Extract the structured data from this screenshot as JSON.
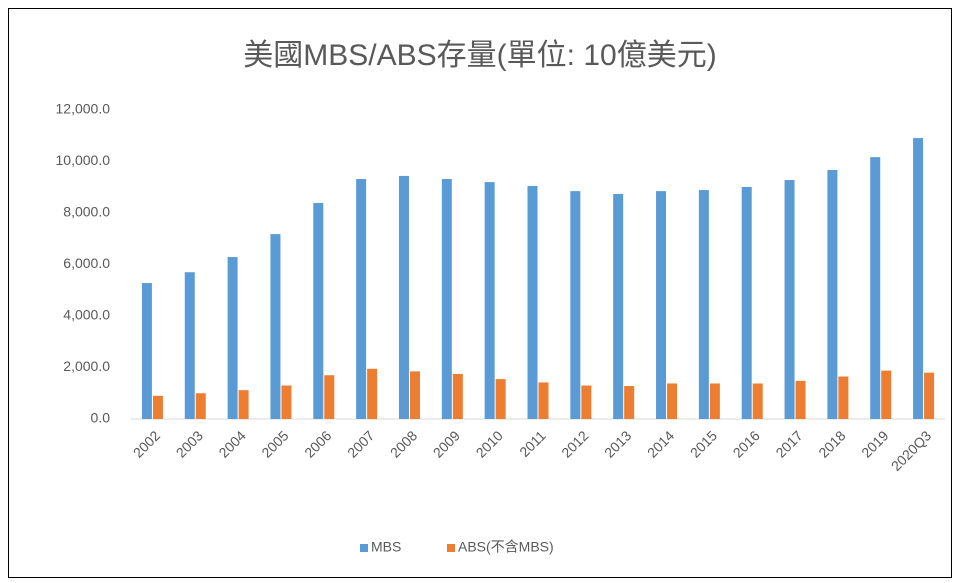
{
  "chart_data": {
    "type": "bar",
    "title": "美國MBS/ABS存量(單位: 10億美元)",
    "categories": [
      "2002",
      "2003",
      "2004",
      "2005",
      "2006",
      "2007",
      "2008",
      "2009",
      "2010",
      "2011",
      "2012",
      "2013",
      "2014",
      "2015",
      "2016",
      "2017",
      "2018",
      "2019",
      "2020Q3"
    ],
    "series": [
      {
        "name": "MBS",
        "color": "#5b9bd5",
        "values": [
          5280,
          5700,
          6290,
          7180,
          8390,
          9320,
          9440,
          9320,
          9200,
          9050,
          8850,
          8740,
          8850,
          8890,
          9010,
          9280,
          9670,
          10170,
          10910
        ]
      },
      {
        "name": "ABS(不含MBS)",
        "color": "#ed7d31",
        "values": [
          900,
          1000,
          1120,
          1300,
          1700,
          1950,
          1850,
          1750,
          1550,
          1420,
          1300,
          1280,
          1380,
          1380,
          1380,
          1480,
          1650,
          1880,
          1800
        ]
      }
    ],
    "ylim": [
      0,
      12000
    ],
    "yticks": [
      {
        "value": 0,
        "label": "0.0"
      },
      {
        "value": 2000,
        "label": "2,000.0"
      },
      {
        "value": 4000,
        "label": "4,000.0"
      },
      {
        "value": 6000,
        "label": "6,000.0"
      },
      {
        "value": 8000,
        "label": "8,000.0"
      },
      {
        "value": 10000,
        "label": "10,000.0"
      },
      {
        "value": 12000,
        "label": "12,000.0"
      }
    ],
    "grid": false,
    "legend": "bottom"
  }
}
